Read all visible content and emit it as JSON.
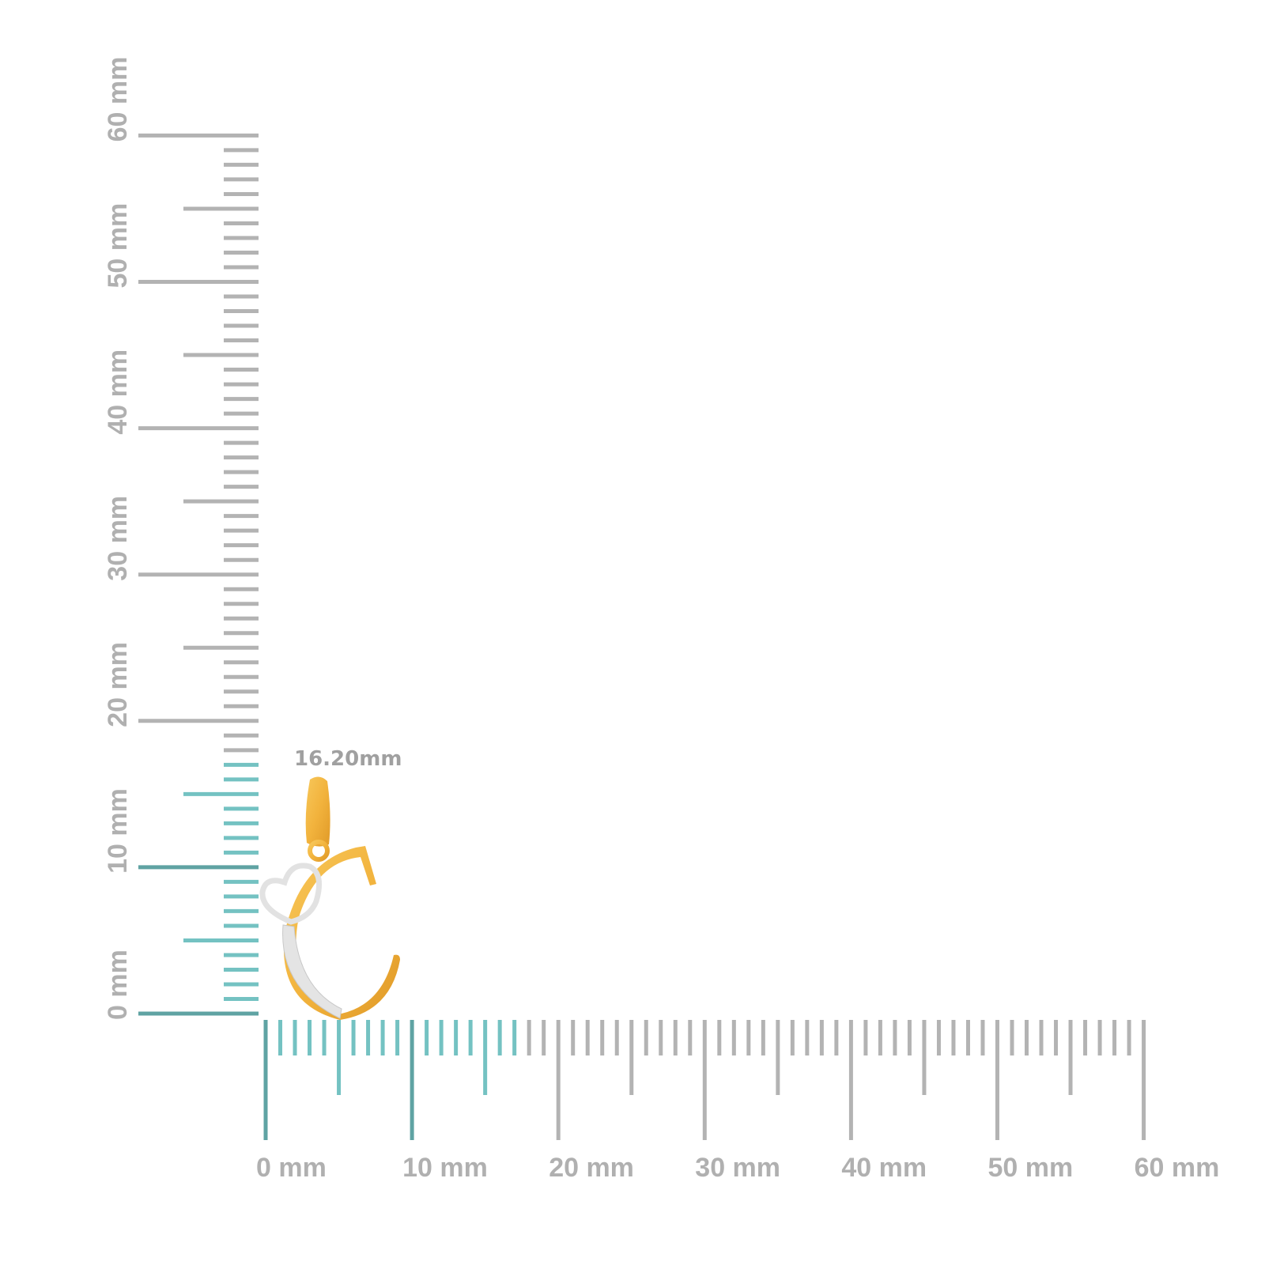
{
  "measurement": {
    "label": "16.20mm",
    "value_mm": 16.2
  },
  "ruler": {
    "unit": "mm",
    "range": [
      0,
      60
    ],
    "labels": [
      "0 mm",
      "10 mm",
      "20 mm",
      "30 mm",
      "40 mm",
      "50 mm",
      "60 mm"
    ],
    "highlight_color": "#74c2c2",
    "highlight_major_color": "#5fa3a3",
    "tick_color": "#b3b3b3"
  },
  "product": {
    "description_icon": "letter-c-heart-pendant",
    "gold": "#f2b33d",
    "silver": "#e6e6e6"
  }
}
